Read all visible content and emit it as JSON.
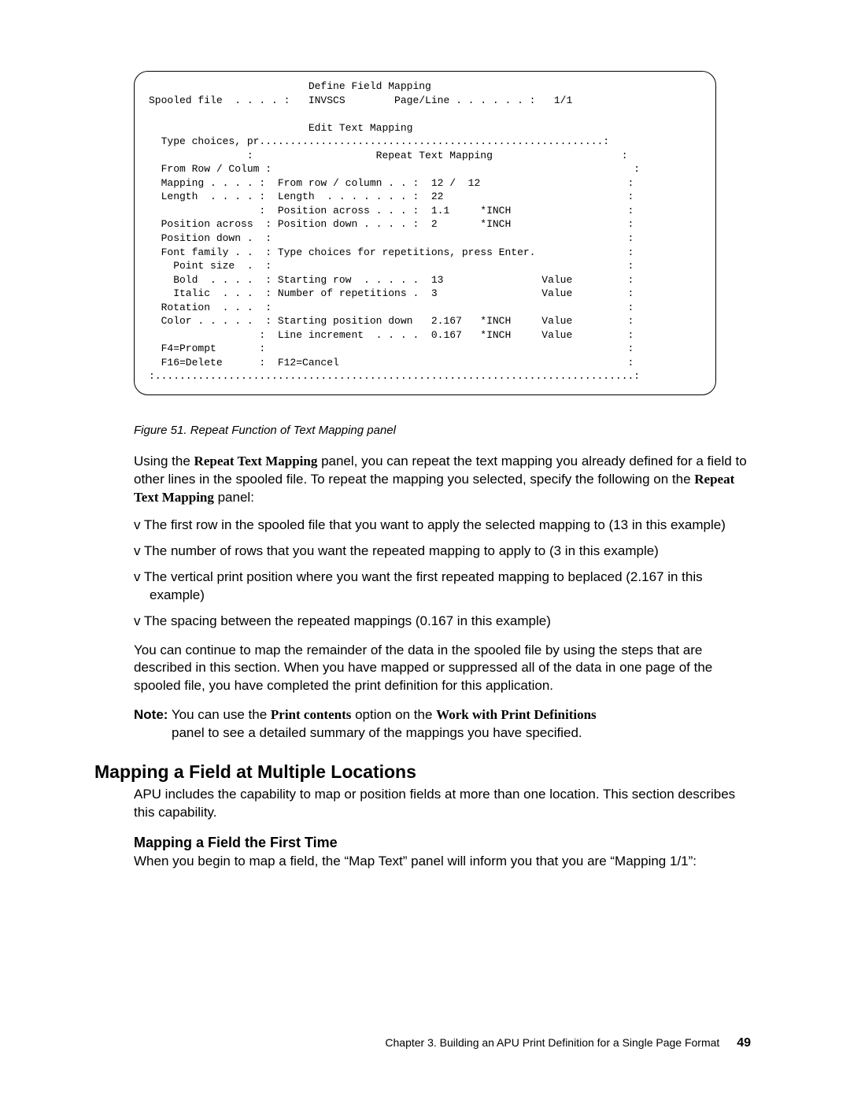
{
  "terminal": {
    "title": "Define Field Mapping",
    "spool_label": "Spooled file  . . . . :",
    "spool_value": "INVSCS",
    "pageline_label": "Page/Line . . . . . . :",
    "pageline_value": "1/1",
    "subtitle": "Edit Text Mapping",
    "type_choices": "Type choices, pr",
    "panel_title": "Repeat Text Mapping",
    "left": {
      "from_row": "From Row / Colum :",
      "mapping": "Mapping . . . . :",
      "length": "Length  . . . . :",
      "blank_colon": "                :",
      "pos_across": "Position across  :",
      "pos_down": "Position down .  :",
      "font_family": "Font family . .  :",
      "point_size": "  Point size  .  :",
      "bold": "  Bold  . . . .  :",
      "italic": "  Italic  . . .  :",
      "rotation": "Rotation  . . .  :",
      "color": "Color . . . . .  :",
      "blank_colon2": "                :",
      "f4": "F4=Prompt       :",
      "f16": "F16=Delete      :"
    },
    "right": {
      "from_row_col": "From row / column . . :",
      "from_val": "12 /  12",
      "length_lbl": "Length  . . . . . . . :",
      "length_val": "22",
      "pos_across_lbl": "Position across . . . :",
      "pos_across_val": "1.1",
      "inch": "*INCH",
      "pos_down_lbl": "Position down . . . . :",
      "pos_down_val": "2",
      "type_rep": "Type choices for repetitions, press Enter.",
      "start_row_lbl": "Starting row  . . . . .",
      "start_row_val": "13",
      "value": "Value",
      "num_rep_lbl": "Number of repetitions .",
      "num_rep_val": "3",
      "start_pos_lbl": "Starting position down",
      "start_pos_val": "2.167",
      "line_inc_lbl": "Line increment  . . . .",
      "line_inc_val": "0.167",
      "f12": "F12=Cancel"
    }
  },
  "figure_caption": "Figure 51. Repeat Function of Text Mapping panel",
  "para1_a": "Using the ",
  "para1_bold1": "Repeat Text Mapping",
  "para1_b": " panel, you can repeat the text mapping you already defined for a field to other lines in the spooled file. To repeat the mapping you selected, specify the following on the ",
  "para1_bold2": "Repeat Text Mapping",
  "para1_c": " panel:",
  "bullets": [
    "The first row in the spooled file that you want to apply the selected mapping to (13 in this example)",
    "The number of rows that you want the repeated mapping to apply to (3 in this example)",
    "The vertical print position where you want the first repeated mapping to beplaced (2.167 in this example)",
    "The spacing between the repeated mappings (0.167 in this example)"
  ],
  "para2": "You can continue to map the remainder of the data in the spooled file by using the steps that are described in this section. When you have mapped or suppressed all of the data in one page of the spooled file, you have completed the print definition for this application.",
  "note": {
    "label": "Note:",
    "a": " You can use the ",
    "bold1": "Print contents",
    "b": " option on the ",
    "bold2": "Work with Print Definitions",
    "c": "panel to see a detailed summary of the mappings you have specified."
  },
  "h2": "Mapping a Field at Multiple Locations",
  "para3": "APU includes the capability to map or position fields at more than one location. This section describes this capability.",
  "h3": "Mapping a Field the First Time",
  "para4": "When you begin to map a field, the “Map Text” panel will inform you that you are “Mapping 1/1”:",
  "footer": {
    "chapter": "Chapter 3. Building an APU Print Definition for a Single Page Format",
    "page": "49"
  }
}
